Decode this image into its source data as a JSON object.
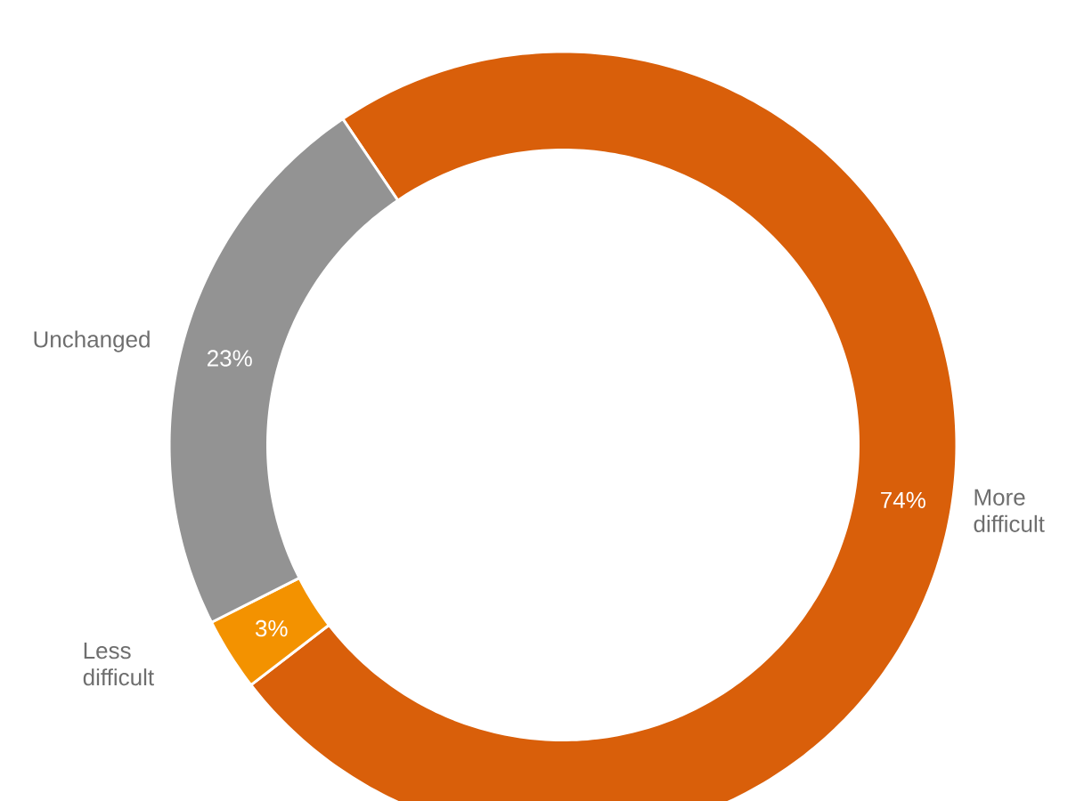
{
  "chart_data": {
    "type": "donut",
    "categories": [
      "More difficult",
      "Less difficult",
      "Unchanged"
    ],
    "values": [
      74,
      3,
      23
    ],
    "colors": [
      "#d95f0a",
      "#f39200",
      "#939393"
    ],
    "value_labels": [
      "74%",
      "3%",
      "23%"
    ]
  }
}
